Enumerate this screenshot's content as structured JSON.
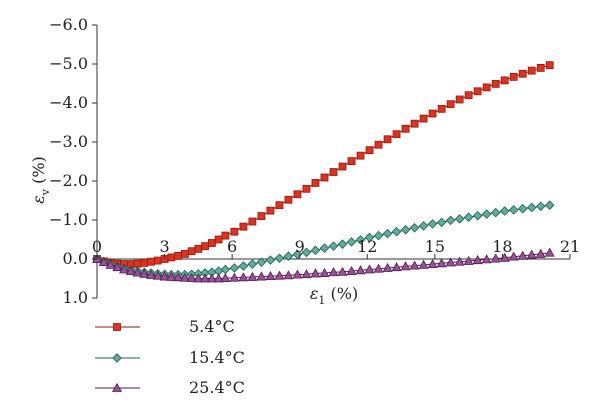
{
  "chart_data": {
    "type": "line",
    "xlabel": {
      "symbol": "ε",
      "sub": "1",
      "unit": " (%)"
    },
    "ylabel": {
      "symbol": "ε",
      "sub": "v",
      "unit": " (%)"
    },
    "xlim": [
      0,
      21
    ],
    "ylim": [
      1.0,
      -6.0
    ],
    "x_ticks": [
      "0",
      "3",
      "6",
      "9",
      "12",
      "15",
      "18",
      "21"
    ],
    "y_ticks": [
      "−6.0",
      "−5.0",
      "−4.0",
      "−3.0",
      "−2.0",
      "−1.0",
      "0.0",
      "1.0"
    ],
    "grid": false,
    "legend_position": "bottom-left",
    "series": [
      {
        "name": "5.4°C",
        "color": "#e0301e",
        "stroke": "#8a1c10",
        "marker": "square",
        "x": [
          0,
          0.3,
          0.6,
          0.9,
          1.2,
          1.5,
          1.8,
          2.1,
          2.4,
          2.7,
          3.0,
          3.3,
          3.6,
          3.9,
          4.2,
          4.5,
          4.8,
          5.1,
          5.4,
          5.7,
          6.1,
          6.5,
          6.9,
          7.3,
          7.7,
          8.1,
          8.5,
          8.9,
          9.3,
          9.7,
          10.1,
          10.5,
          10.9,
          11.3,
          11.7,
          12.1,
          12.5,
          12.9,
          13.3,
          13.7,
          14.1,
          14.5,
          14.9,
          15.3,
          15.7,
          16.1,
          16.5,
          16.9,
          17.3,
          17.7,
          18.1,
          18.5,
          18.9,
          19.3,
          19.7,
          20.1
        ],
        "y": [
          0.0,
          0.06,
          0.1,
          0.12,
          0.13,
          0.13,
          0.12,
          0.1,
          0.07,
          0.04,
          0.0,
          -0.04,
          -0.08,
          -0.13,
          -0.2,
          -0.26,
          -0.33,
          -0.41,
          -0.5,
          -0.6,
          -0.7,
          -0.83,
          -0.96,
          -1.1,
          -1.24,
          -1.38,
          -1.52,
          -1.66,
          -1.8,
          -1.95,
          -2.09,
          -2.23,
          -2.37,
          -2.51,
          -2.65,
          -2.79,
          -2.93,
          -3.07,
          -3.2,
          -3.34,
          -3.47,
          -3.6,
          -3.73,
          -3.85,
          -3.97,
          -4.09,
          -4.2,
          -4.3,
          -4.4,
          -4.49,
          -4.58,
          -4.67,
          -4.75,
          -4.83,
          -4.9,
          -4.97
        ]
      },
      {
        "name": "15.4°C",
        "color": "#5fae9b",
        "stroke": "#1f5f52",
        "marker": "diamond",
        "x": [
          0,
          0.3,
          0.6,
          0.9,
          1.2,
          1.5,
          1.8,
          2.1,
          2.4,
          2.7,
          3.0,
          3.3,
          3.6,
          3.9,
          4.2,
          4.5,
          4.8,
          5.1,
          5.4,
          5.7,
          6.1,
          6.5,
          6.9,
          7.3,
          7.7,
          8.1,
          8.5,
          8.9,
          9.3,
          9.7,
          10.1,
          10.5,
          10.9,
          11.3,
          11.7,
          12.1,
          12.5,
          12.9,
          13.3,
          13.7,
          14.1,
          14.5,
          14.9,
          15.3,
          15.7,
          16.1,
          16.5,
          16.9,
          17.3,
          17.7,
          18.1,
          18.5,
          18.9,
          19.3,
          19.7,
          20.1
        ],
        "y": [
          0.0,
          0.07,
          0.13,
          0.19,
          0.24,
          0.28,
          0.31,
          0.34,
          0.36,
          0.38,
          0.39,
          0.4,
          0.4,
          0.4,
          0.39,
          0.38,
          0.36,
          0.34,
          0.31,
          0.27,
          0.23,
          0.18,
          0.13,
          0.08,
          0.03,
          -0.02,
          -0.07,
          -0.12,
          -0.17,
          -0.22,
          -0.28,
          -0.33,
          -0.38,
          -0.44,
          -0.49,
          -0.55,
          -0.6,
          -0.65,
          -0.7,
          -0.75,
          -0.8,
          -0.85,
          -0.9,
          -0.94,
          -0.99,
          -1.03,
          -1.07,
          -1.11,
          -1.15,
          -1.19,
          -1.23,
          -1.26,
          -1.29,
          -1.32,
          -1.35,
          -1.38
        ]
      },
      {
        "name": "25.4°C",
        "color": "#9b4f9b",
        "stroke": "#4d1f4d",
        "marker": "triangle",
        "x": [
          0,
          0.3,
          0.6,
          0.9,
          1.2,
          1.5,
          1.8,
          2.1,
          2.4,
          2.7,
          3.0,
          3.3,
          3.6,
          3.9,
          4.2,
          4.5,
          4.8,
          5.1,
          5.4,
          5.7,
          6.1,
          6.5,
          6.9,
          7.3,
          7.7,
          8.1,
          8.5,
          8.9,
          9.3,
          9.7,
          10.1,
          10.5,
          10.9,
          11.3,
          11.7,
          12.1,
          12.5,
          12.9,
          13.3,
          13.7,
          14.1,
          14.5,
          14.9,
          15.3,
          15.7,
          16.1,
          16.5,
          16.9,
          17.3,
          17.7,
          18.1,
          18.5,
          18.9,
          19.3,
          19.7,
          20.1
        ],
        "y": [
          0.0,
          0.08,
          0.15,
          0.21,
          0.27,
          0.31,
          0.35,
          0.38,
          0.41,
          0.43,
          0.45,
          0.46,
          0.47,
          0.48,
          0.49,
          0.5,
          0.5,
          0.5,
          0.5,
          0.49,
          0.48,
          0.47,
          0.46,
          0.45,
          0.44,
          0.43,
          0.42,
          0.4,
          0.39,
          0.37,
          0.36,
          0.34,
          0.33,
          0.31,
          0.29,
          0.27,
          0.25,
          0.23,
          0.21,
          0.19,
          0.17,
          0.15,
          0.13,
          0.11,
          0.09,
          0.07,
          0.05,
          0.03,
          0.01,
          -0.01,
          -0.03,
          -0.06,
          -0.08,
          -0.11,
          -0.13,
          -0.16
        ]
      }
    ]
  }
}
